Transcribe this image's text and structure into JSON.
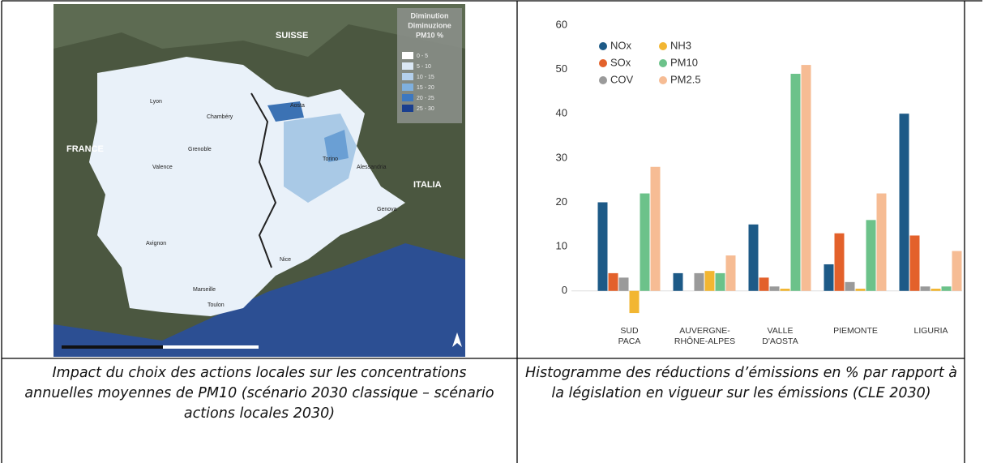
{
  "map": {
    "legend": [
      "Diminution",
      "Diminuzione",
      "PM10 %"
    ],
    "classes": [
      "0 - 5",
      "5 - 10",
      "10 - 15",
      "15 - 20",
      "20 - 25",
      "25 - 30"
    ],
    "labels": [
      "SUISSE",
      "FRANCE",
      "ITALIA",
      "Lyon",
      "Chambéry",
      "Grenoble",
      "Valence",
      "Aosta",
      "Torino",
      "Alessandria",
      "Genova",
      "Avignon",
      "Nice",
      "Marseille",
      "Toulon"
    ]
  },
  "chart_data": {
    "type": "bar",
    "categories": [
      [
        "SUD",
        "PACA"
      ],
      [
        "AUVERGNE-",
        "RHÔNE-ALPES"
      ],
      [
        "VALLE",
        "D'AOSTA"
      ],
      [
        "PIEMONTE"
      ],
      [
        "LIGURIA"
      ]
    ],
    "series": [
      {
        "name": "NOx",
        "color": "#1d5a87",
        "values": [
          20,
          4,
          15,
          6,
          40
        ]
      },
      {
        "name": "SOx",
        "color": "#e3612b",
        "values": [
          4,
          0,
          3,
          13,
          12.5
        ]
      },
      {
        "name": "COV",
        "color": "#9a9a9a",
        "values": [
          3,
          4,
          1,
          2,
          1
        ]
      },
      {
        "name": "NH3",
        "color": "#f2b632",
        "values": [
          -5,
          4.5,
          0.5,
          0.5,
          0.5
        ]
      },
      {
        "name": "PM10",
        "color": "#6cc28a",
        "values": [
          22,
          4,
          49,
          16,
          1
        ]
      },
      {
        "name": "PM2.5",
        "color": "#f6bc94",
        "values": [
          28,
          8,
          51,
          22,
          9
        ]
      }
    ],
    "ylim": [
      -7,
      62
    ],
    "yticks": [
      0,
      10,
      20,
      30,
      40,
      50,
      60
    ]
  },
  "captions": [
    "Impact du choix des actions locales sur les concentrations annuelles moyennes de PM10 (scénario 2030 classique – scénario actions locales 2030)",
    "Histogramme des réductions d’émissions en % par rapport à la législation en vigueur sur les émissions (CLE 2030)"
  ]
}
